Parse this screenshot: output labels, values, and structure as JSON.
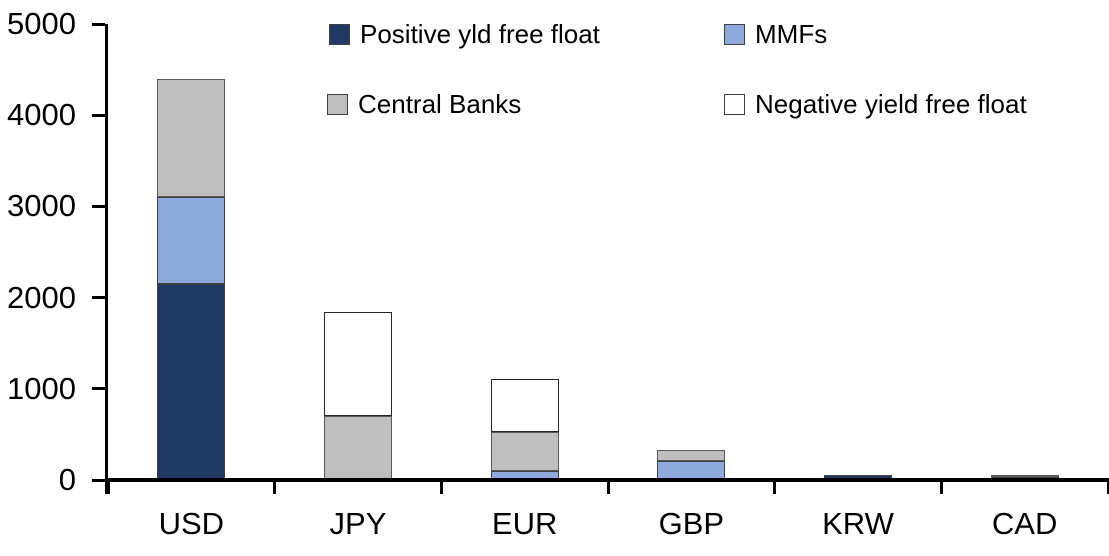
{
  "chart_data": {
    "type": "bar",
    "stacked": true,
    "title": "",
    "xlabel": "",
    "ylabel": "",
    "categories": [
      "USD",
      "JPY",
      "EUR",
      "GBP",
      "KRW",
      "CAD"
    ],
    "series": [
      {
        "name": "Positive yld free float",
        "color": "#1F3864",
        "border": "#404040",
        "values": [
          2150,
          0,
          0,
          0,
          50,
          30
        ]
      },
      {
        "name": "MMFs",
        "color": "#8EA9DB",
        "border": "#404040",
        "values": [
          950,
          0,
          100,
          210,
          0,
          0
        ]
      },
      {
        "name": "Central Banks",
        "color": "#BFBFBF",
        "border": "#595959",
        "values": [
          1300,
          700,
          430,
          120,
          0,
          30
        ]
      },
      {
        "name": "Negative yield free float",
        "color": "#FFFFFF",
        "border": "#262626",
        "values": [
          0,
          1140,
          580,
          0,
          0,
          0
        ]
      }
    ],
    "totals_by_category": [
      4400,
      1840,
      1110,
      330,
      50,
      60
    ],
    "ylim": [
      0,
      5000
    ],
    "yticks": [
      0,
      1000,
      2000,
      3000,
      4000,
      5000
    ],
    "grid": false,
    "legend_position": "top-inside-two-columns",
    "axis_color": "#000000",
    "background": "#FFFFFF"
  },
  "legend": {
    "items": [
      {
        "label": "Positive yld free float",
        "swatch": "#1F3864"
      },
      {
        "label": "MMFs",
        "swatch": "#8EA9DB"
      },
      {
        "label": "Central Banks",
        "swatch": "#BFBFBF"
      },
      {
        "label": "Negative yield free float",
        "swatch": "#FFFFFF"
      }
    ]
  }
}
